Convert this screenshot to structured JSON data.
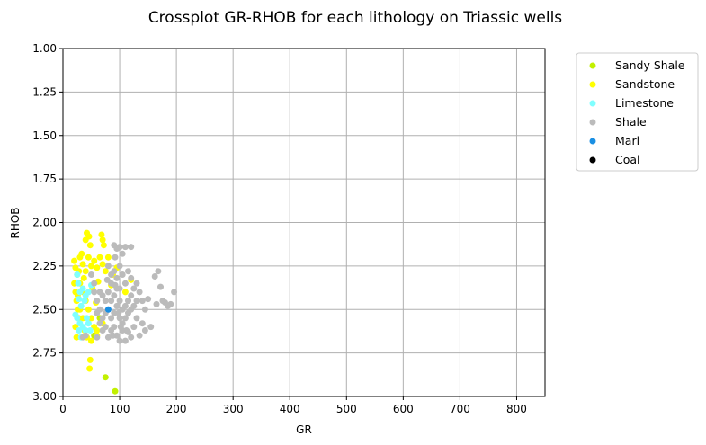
{
  "chart_data": {
    "type": "scatter",
    "title": "Crossplot GR-RHOB for each lithology on Triassic wells",
    "xlabel": "GR",
    "ylabel": "RHOB",
    "xlim": [
      0,
      850
    ],
    "ylim": [
      3.0,
      1.0
    ],
    "y_inverted": true,
    "grid": true,
    "legend_position": "outside-right",
    "x_ticks": [
      0,
      100,
      200,
      300,
      400,
      500,
      600,
      700,
      800
    ],
    "x_tick_labels": [
      "0",
      "100",
      "200",
      "300",
      "400",
      "500",
      "600",
      "700",
      "800"
    ],
    "y_ticks": [
      1.0,
      1.25,
      1.5,
      1.75,
      2.0,
      2.25,
      2.5,
      2.75,
      3.0
    ],
    "y_tick_labels": [
      "1.00",
      "1.25",
      "1.50",
      "1.75",
      "2.00",
      "2.25",
      "2.50",
      "2.75",
      "3.00"
    ],
    "series": [
      {
        "name": "Sandy Shale",
        "color": "#c2f000",
        "points": [
          [
            75,
            2.89
          ],
          [
            92,
            2.97
          ],
          [
            55,
            2.65
          ],
          [
            65,
            2.55
          ]
        ]
      },
      {
        "name": "Sandstone",
        "color": "#ffff00",
        "points": [
          [
            42,
            2.06
          ],
          [
            46,
            2.08
          ],
          [
            40,
            2.1
          ],
          [
            48,
            2.13
          ],
          [
            68,
            2.07
          ],
          [
            70,
            2.1
          ],
          [
            72,
            2.13
          ],
          [
            20,
            2.22
          ],
          [
            22,
            2.26
          ],
          [
            25,
            2.3
          ],
          [
            30,
            2.2
          ],
          [
            35,
            2.24
          ],
          [
            40,
            2.28
          ],
          [
            45,
            2.2
          ],
          [
            50,
            2.25
          ],
          [
            55,
            2.22
          ],
          [
            60,
            2.26
          ],
          [
            65,
            2.2
          ],
          [
            70,
            2.24
          ],
          [
            75,
            2.28
          ],
          [
            80,
            2.2
          ],
          [
            20,
            2.35
          ],
          [
            22,
            2.4
          ],
          [
            24,
            2.45
          ],
          [
            26,
            2.5
          ],
          [
            28,
            2.55
          ],
          [
            22,
            2.6
          ],
          [
            24,
            2.66
          ],
          [
            30,
            2.35
          ],
          [
            35,
            2.4
          ],
          [
            40,
            2.45
          ],
          [
            45,
            2.5
          ],
          [
            50,
            2.55
          ],
          [
            55,
            2.6
          ],
          [
            60,
            2.65
          ],
          [
            30,
            2.5
          ],
          [
            35,
            2.55
          ],
          [
            38,
            2.62
          ],
          [
            42,
            2.66
          ],
          [
            50,
            2.68
          ],
          [
            60,
            2.62
          ],
          [
            70,
            2.58
          ],
          [
            48,
            2.79
          ],
          [
            47,
            2.84
          ],
          [
            85,
            2.36
          ],
          [
            88,
            2.3
          ],
          [
            95,
            2.26
          ],
          [
            120,
            2.33
          ],
          [
            110,
            2.4
          ],
          [
            33,
            2.18
          ],
          [
            37,
            2.32
          ],
          [
            52,
            2.38
          ],
          [
            58,
            2.46
          ],
          [
            62,
            2.34
          ],
          [
            26,
            2.42
          ],
          [
            28,
            2.28
          ]
        ]
      },
      {
        "name": "Limestone",
        "color": "#80ffff",
        "points": [
          [
            25,
            2.3
          ],
          [
            27,
            2.35
          ],
          [
            30,
            2.4
          ],
          [
            35,
            2.38
          ],
          [
            40,
            2.42
          ],
          [
            45,
            2.4
          ],
          [
            50,
            2.36
          ],
          [
            28,
            2.44
          ],
          [
            32,
            2.48
          ],
          [
            25,
            2.55
          ],
          [
            30,
            2.58
          ],
          [
            35,
            2.6
          ],
          [
            40,
            2.62
          ],
          [
            45,
            2.58
          ],
          [
            28,
            2.62
          ],
          [
            32,
            2.66
          ],
          [
            22,
            2.53
          ],
          [
            38,
            2.45
          ],
          [
            42,
            2.55
          ],
          [
            48,
            2.62
          ]
        ]
      },
      {
        "name": "Shale",
        "color": "#bbbbbb",
        "points": [
          [
            90,
            2.13
          ],
          [
            95,
            2.15
          ],
          [
            100,
            2.14
          ],
          [
            110,
            2.14
          ],
          [
            120,
            2.14
          ],
          [
            105,
            2.18
          ],
          [
            92,
            2.2
          ],
          [
            80,
            2.25
          ],
          [
            85,
            2.3
          ],
          [
            90,
            2.28
          ],
          [
            95,
            2.32
          ],
          [
            100,
            2.25
          ],
          [
            105,
            2.3
          ],
          [
            110,
            2.35
          ],
          [
            115,
            2.28
          ],
          [
            120,
            2.32
          ],
          [
            125,
            2.38
          ],
          [
            130,
            2.35
          ],
          [
            135,
            2.4
          ],
          [
            140,
            2.45
          ],
          [
            145,
            2.5
          ],
          [
            150,
            2.44
          ],
          [
            162,
            2.31
          ],
          [
            168,
            2.28
          ],
          [
            172,
            2.37
          ],
          [
            180,
            2.46
          ],
          [
            185,
            2.48
          ],
          [
            190,
            2.47
          ],
          [
            196,
            2.4
          ],
          [
            176,
            2.45
          ],
          [
            165,
            2.47
          ],
          [
            155,
            2.6
          ],
          [
            145,
            2.62
          ],
          [
            140,
            2.58
          ],
          [
            135,
            2.65
          ],
          [
            130,
            2.55
          ],
          [
            125,
            2.6
          ],
          [
            120,
            2.66
          ],
          [
            115,
            2.63
          ],
          [
            110,
            2.68
          ],
          [
            105,
            2.62
          ],
          [
            100,
            2.68
          ],
          [
            95,
            2.65
          ],
          [
            90,
            2.6
          ],
          [
            85,
            2.62
          ],
          [
            80,
            2.66
          ],
          [
            75,
            2.6
          ],
          [
            70,
            2.55
          ],
          [
            65,
            2.5
          ],
          [
            60,
            2.45
          ],
          [
            55,
            2.4
          ],
          [
            50,
            2.3
          ],
          [
            55,
            2.35
          ],
          [
            60,
            2.52
          ],
          [
            65,
            2.58
          ],
          [
            70,
            2.62
          ],
          [
            75,
            2.45
          ],
          [
            80,
            2.4
          ],
          [
            85,
            2.45
          ],
          [
            90,
            2.42
          ],
          [
            95,
            2.48
          ],
          [
            100,
            2.45
          ],
          [
            105,
            2.5
          ],
          [
            110,
            2.48
          ],
          [
            115,
            2.52
          ],
          [
            120,
            2.5
          ],
          [
            125,
            2.48
          ],
          [
            130,
            2.45
          ],
          [
            100,
            2.38
          ],
          [
            95,
            2.38
          ],
          [
            90,
            2.52
          ],
          [
            85,
            2.55
          ],
          [
            80,
            2.5
          ],
          [
            75,
            2.52
          ],
          [
            70,
            2.42
          ],
          [
            65,
            2.4
          ],
          [
            100,
            2.55
          ],
          [
            105,
            2.58
          ],
          [
            110,
            2.55
          ],
          [
            115,
            2.45
          ],
          [
            120,
            2.42
          ],
          [
            60,
            2.66
          ],
          [
            40,
            2.65
          ],
          [
            35,
            2.66
          ],
          [
            85,
            2.35
          ],
          [
            92,
            2.36
          ],
          [
            78,
            2.33
          ],
          [
            102,
            2.6
          ],
          [
            112,
            2.62
          ],
          [
            88,
            2.65
          ],
          [
            98,
            2.52
          ]
        ]
      },
      {
        "name": "Marl",
        "color": "#1a8fe3",
        "points": [
          [
            80,
            2.5
          ]
        ]
      },
      {
        "name": "Coal",
        "color": "#000000",
        "points": []
      }
    ]
  }
}
